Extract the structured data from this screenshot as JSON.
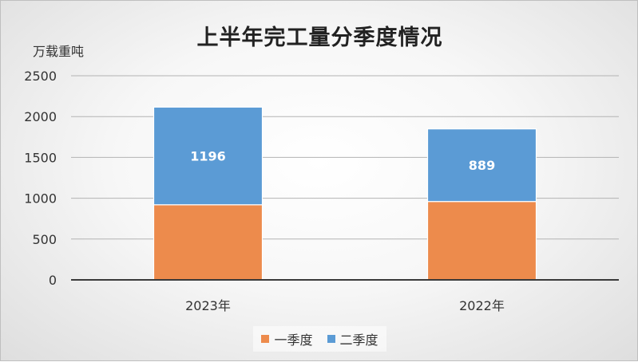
{
  "chart_data": {
    "type": "bar",
    "stacked": true,
    "title": "上半年完工量分季度情况",
    "ylabel": "万载重吨",
    "xlabel": "",
    "categories": [
      "2023年",
      "2022年"
    ],
    "series": [
      {
        "name": "一季度",
        "values": [
          920,
          960
        ],
        "color": "#ED8B4C",
        "show_labels": false
      },
      {
        "name": "二季度",
        "values": [
          1196,
          889
        ],
        "color": "#5B9BD5",
        "show_labels": true
      }
    ],
    "ylim": [
      0,
      2500
    ],
    "yticks": [
      0,
      500,
      1000,
      1500,
      2000,
      2500
    ],
    "grid": true,
    "legend_position": "bottom"
  }
}
